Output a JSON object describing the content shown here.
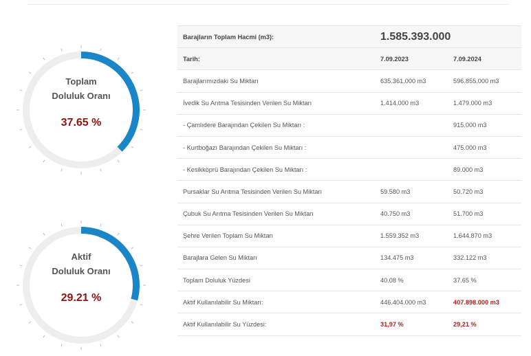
{
  "gauges": [
    {
      "title_line1": "Toplam",
      "title_line2": "Doluluk Oranı",
      "value_text": "37.65 %",
      "fraction": 0.3765
    },
    {
      "title_line1": "Aktif",
      "title_line2": "Doluluk Oranı",
      "value_text": "29.21 %",
      "fraction": 0.2921
    }
  ],
  "colors": {
    "arc": "#1a86c8",
    "track": "#eeeeee",
    "ticks": "#bbbbbb",
    "value": "#8a1512",
    "highlight": "#b0231f"
  },
  "table": {
    "total_label": "Barajların Toplam Hacmi (m3):",
    "total_value": "1.585.393.000",
    "date_label": "Tarih:",
    "date_1": "7.09.2023",
    "date_2": "7.09.2024",
    "rows": [
      {
        "label": "Barajlarımızdaki Su Miktarı",
        "v1": "635.361.000 m3",
        "v2": "596.855.000 m3"
      },
      {
        "label": "İvedik Su Arıtma Tesisinden Verilen Su Miktarı",
        "v1": "1.414.000 m3",
        "v2": "1.479.000 m3"
      },
      {
        "label": "- Çamlıdere Barajından Çekilen Su Miktarı :",
        "v1": "",
        "v2": "915.000 m3"
      },
      {
        "label": "- Kurtboğazı Barajından Çekilen Su Miktarı :",
        "v1": "",
        "v2": "475.000 m3"
      },
      {
        "label": "- Kesikköprü Barajından Çekilen Su Miktarı :",
        "v1": "",
        "v2": "89.000 m3"
      },
      {
        "label": "Pursaklar Su Arıtma Tesisinden Verilen Su Miktarı",
        "v1": "59.580 m3",
        "v2": "50.720 m3"
      },
      {
        "label": "Çubuk Su Arıtma Tesisinden Verilen Su Miktarı",
        "v1": "40.750 m3",
        "v2": "51.700 m3"
      },
      {
        "label": "Şehre Verilen Toplam Su Miktarı",
        "v1": "1.559.352 m3",
        "v2": "1.644.870 m3"
      },
      {
        "label": "Barajlara Gelen Su Miktarı",
        "v1": "134.475 m3",
        "v2": "332.122 m3"
      },
      {
        "label": "Toplam Doluluk Yüzdesi",
        "v1": "40.08 %",
        "v2": "37.65 %"
      },
      {
        "label": "Aktif Kullanılabilir Su Miktarı:",
        "v1": "446.404.000 m3",
        "v2": "407.898.000 m3"
      },
      {
        "label": "Aktif Kullanılabilir Su Yüzdesi:",
        "v1": "31,97 %",
        "v2": "29,21 %"
      }
    ]
  }
}
